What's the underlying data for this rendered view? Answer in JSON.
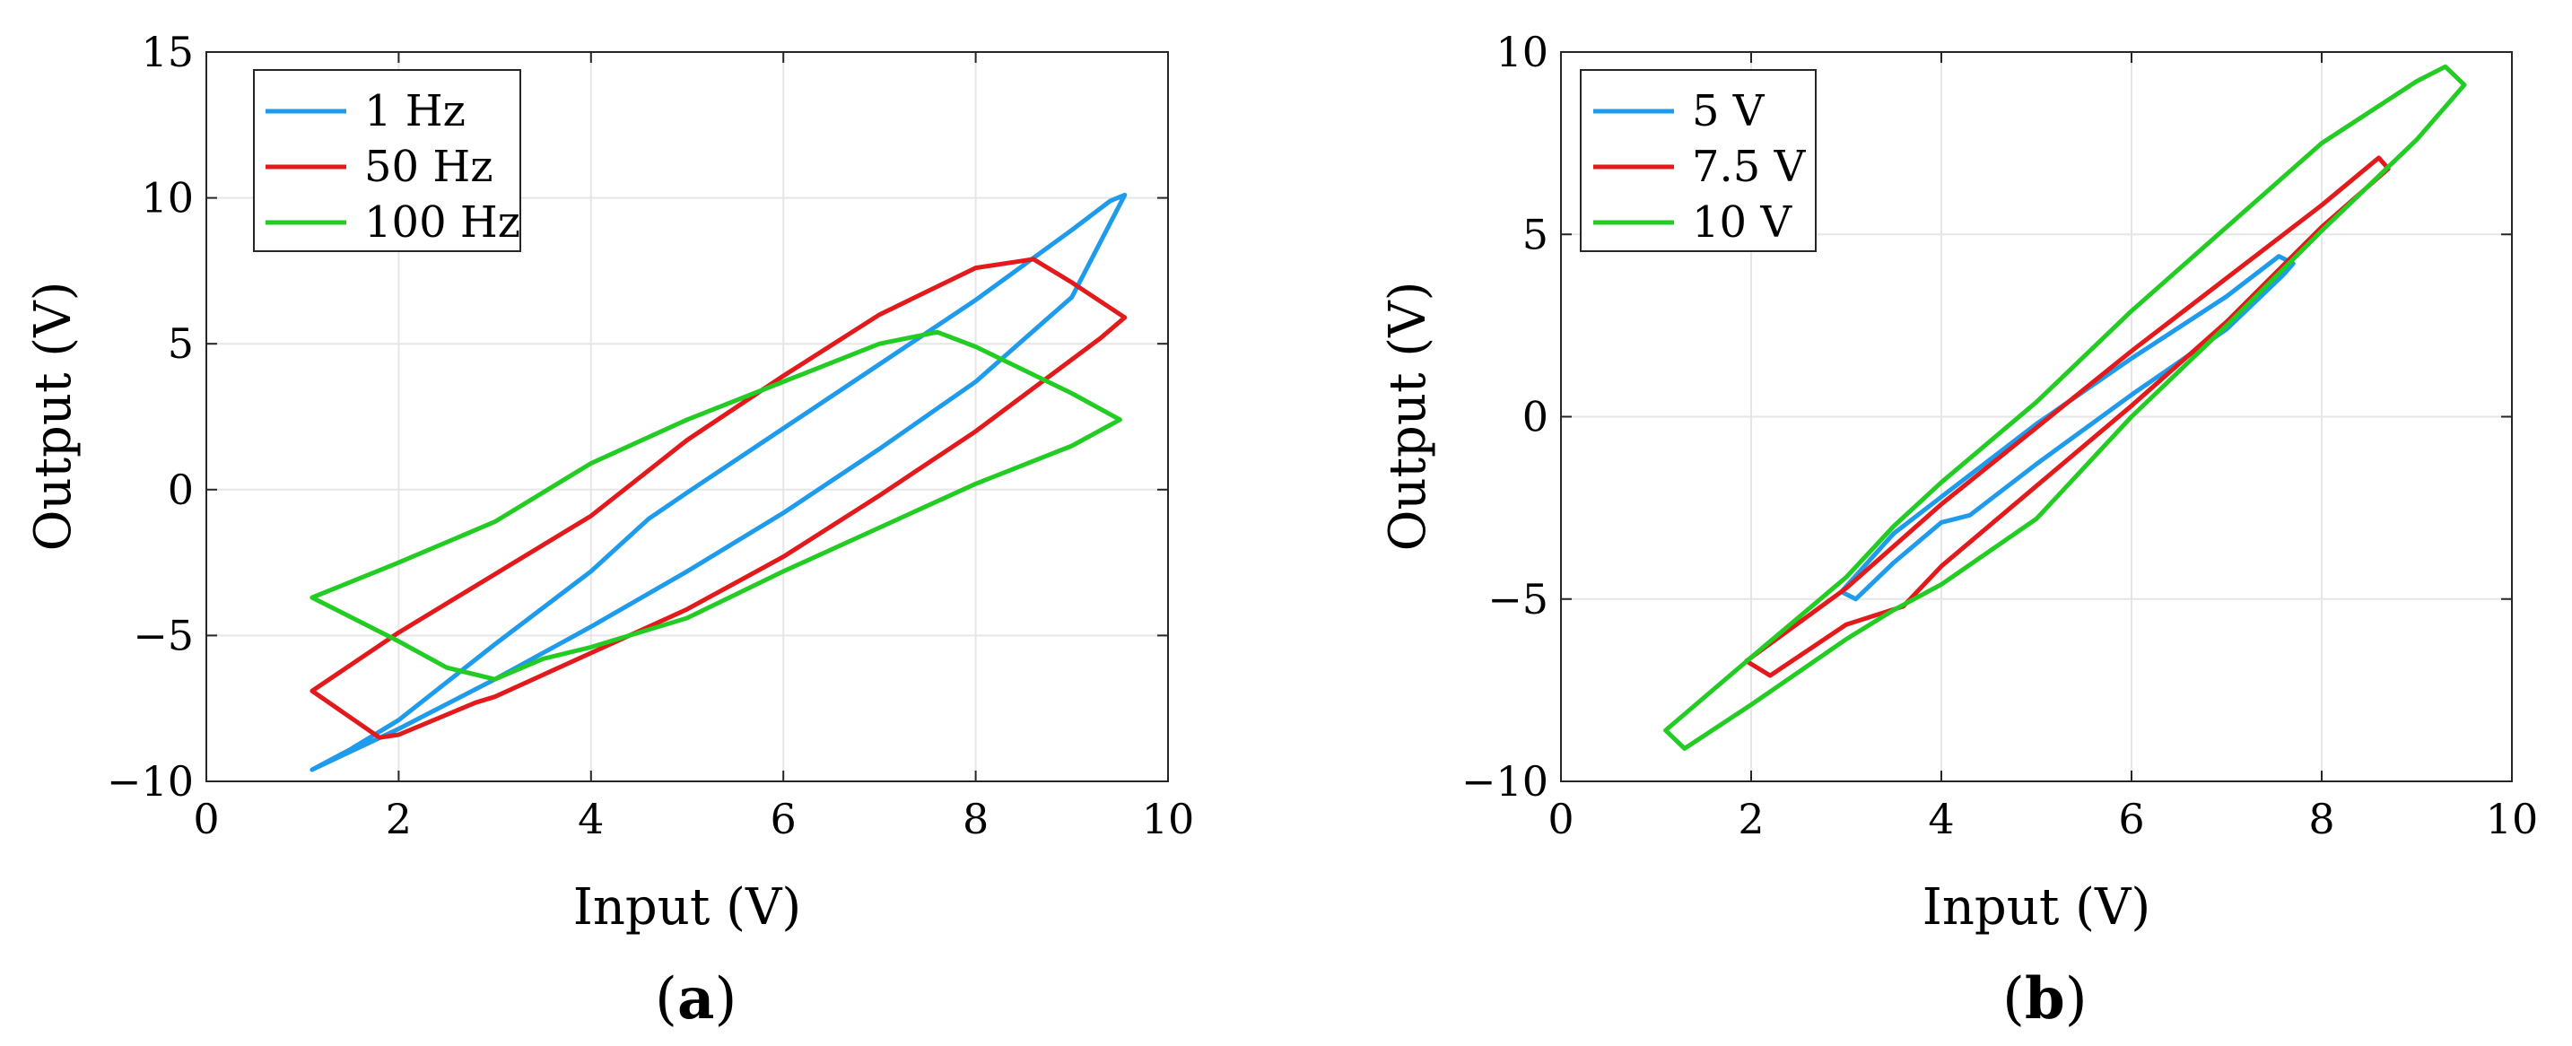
{
  "chart_data": [
    {
      "type": "line",
      "panel_label": "(a)",
      "panel_letter": "a",
      "xlabel": "Input (V)",
      "ylabel": "Output (V)",
      "xlim": [
        0,
        10
      ],
      "ylim": [
        -10,
        15
      ],
      "xticks": [
        0,
        2,
        4,
        6,
        8,
        10
      ],
      "yticks": [
        -10,
        -5,
        0,
        5,
        10,
        15
      ],
      "ytick_labels": [
        "−10",
        "−5",
        "0",
        "5",
        "10",
        "15"
      ],
      "xtick_labels": [
        "0",
        "2",
        "4",
        "6",
        "8",
        "10"
      ],
      "grid": true,
      "legend_position": "top-left",
      "series": [
        {
          "name": "1 Hz",
          "color": "#1e9bea",
          "x": [
            1.1,
            2.0,
            3.0,
            4.0,
            5.0,
            6.0,
            7.0,
            8.0,
            9.0,
            9.55,
            9.4,
            9.0,
            8.0,
            7.0,
            6.0,
            5.0,
            4.6,
            4.0,
            3.0,
            2.0,
            1.5,
            1.1
          ],
          "y": [
            -9.6,
            -8.2,
            -6.5,
            -4.7,
            -2.8,
            -0.8,
            1.4,
            3.7,
            6.6,
            10.1,
            9.9,
            8.9,
            6.5,
            4.3,
            2.1,
            -0.1,
            -1.0,
            -2.8,
            -5.3,
            -7.9,
            -8.9,
            -9.6
          ]
        },
        {
          "name": "50 Hz",
          "color": "#e31a1c",
          "x": [
            1.1,
            2.0,
            3.0,
            4.0,
            5.0,
            6.0,
            7.0,
            8.0,
            8.6,
            9.0,
            9.55,
            9.3,
            8.0,
            7.0,
            6.0,
            5.0,
            4.0,
            3.0,
            2.8,
            2.0,
            1.8,
            1.1
          ],
          "y": [
            -6.9,
            -4.9,
            -2.9,
            -0.9,
            1.7,
            3.9,
            6.0,
            7.6,
            7.9,
            7.1,
            5.9,
            5.2,
            2.0,
            -0.2,
            -2.3,
            -4.1,
            -5.6,
            -7.1,
            -7.3,
            -8.4,
            -8.5,
            -6.9
          ]
        },
        {
          "name": "100 Hz",
          "color": "#22cc22",
          "x": [
            1.1,
            2.0,
            3.0,
            4.0,
            5.0,
            6.0,
            7.0,
            7.6,
            8.0,
            9.0,
            9.5,
            9.0,
            8.0,
            7.0,
            6.0,
            5.0,
            4.0,
            3.5,
            3.0,
            2.5,
            2.0,
            1.1
          ],
          "y": [
            -3.7,
            -2.5,
            -1.1,
            0.9,
            2.4,
            3.7,
            5.0,
            5.4,
            4.9,
            3.3,
            2.4,
            1.5,
            0.2,
            -1.3,
            -2.8,
            -4.4,
            -5.4,
            -5.8,
            -6.5,
            -6.1,
            -5.2,
            -3.7
          ]
        }
      ]
    },
    {
      "type": "line",
      "panel_label": "(b)",
      "panel_letter": "b",
      "xlabel": "Input (V)",
      "ylabel": "Output (V)",
      "xlim": [
        0,
        10
      ],
      "ylim": [
        -10,
        10
      ],
      "xticks": [
        0,
        2,
        4,
        6,
        8,
        10
      ],
      "yticks": [
        -10,
        -5,
        0,
        5,
        10
      ],
      "ytick_labels": [
        "−10",
        "−5",
        "0",
        "5",
        "10"
      ],
      "xtick_labels": [
        "0",
        "2",
        "4",
        "6",
        "8",
        "10"
      ],
      "grid": true,
      "legend_position": "top-left",
      "series": [
        {
          "name": "5 V",
          "color": "#1e9bea",
          "x": [
            2.95,
            3.5,
            4.0,
            5.0,
            6.0,
            7.0,
            7.55,
            7.7,
            7.6,
            7.0,
            6.0,
            5.0,
            4.3,
            4.0,
            3.5,
            3.1,
            2.95
          ],
          "y": [
            -4.8,
            -3.2,
            -2.2,
            -0.2,
            1.6,
            3.3,
            4.4,
            4.2,
            3.9,
            2.4,
            0.6,
            -1.3,
            -2.7,
            -2.9,
            -4.0,
            -5.0,
            -4.8
          ]
        },
        {
          "name": "7.5 V",
          "color": "#e31a1c",
          "x": [
            1.95,
            3.0,
            4.0,
            5.0,
            6.0,
            7.0,
            8.0,
            8.6,
            8.7,
            8.0,
            7.0,
            6.0,
            5.0,
            4.0,
            3.6,
            3.0,
            2.2,
            1.95
          ],
          "y": [
            -6.7,
            -4.7,
            -2.4,
            -0.3,
            1.8,
            3.8,
            5.8,
            7.1,
            6.8,
            5.2,
            2.6,
            0.3,
            -1.9,
            -4.1,
            -5.2,
            -5.7,
            -7.1,
            -6.7
          ]
        },
        {
          "name": "10 V",
          "color": "#22cc22",
          "x": [
            1.1,
            2.0,
            3.0,
            3.5,
            4.0,
            5.0,
            6.0,
            7.0,
            8.0,
            9.0,
            9.3,
            9.5,
            9.0,
            8.0,
            7.0,
            6.0,
            5.0,
            4.0,
            3.5,
            3.0,
            2.0,
            1.3,
            1.1
          ],
          "y": [
            -8.6,
            -6.6,
            -4.4,
            -3.0,
            -1.8,
            0.4,
            2.9,
            5.2,
            7.5,
            9.2,
            9.6,
            9.1,
            7.6,
            5.1,
            2.5,
            0.0,
            -2.8,
            -4.6,
            -5.3,
            -6.1,
            -7.9,
            -9.1,
            -8.6
          ]
        }
      ]
    }
  ]
}
